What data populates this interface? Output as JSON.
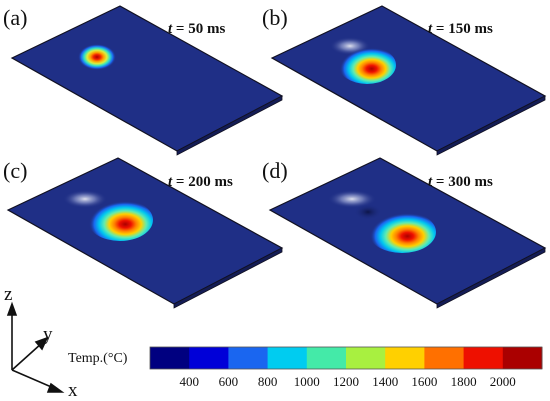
{
  "panels": [
    {
      "label": "(a)",
      "time_var": "t",
      "time_text": " = 50 ms",
      "hot_intensity": 0.55
    },
    {
      "label": "(b)",
      "time_var": "t",
      "time_text": " = 150 ms",
      "hot_intensity": 0.9
    },
    {
      "label": "(c)",
      "time_var": "t",
      "time_text": " = 200 ms",
      "hot_intensity": 0.92
    },
    {
      "label": "(d)",
      "time_var": "t",
      "time_text": " = 300 ms",
      "hot_intensity": 0.95
    }
  ],
  "colorbar": {
    "title": "Temp.(°C)",
    "ticks": [
      "400",
      "600",
      "800",
      "1000",
      "1200",
      "1400",
      "1600",
      "1800",
      "2000"
    ],
    "colors": [
      "#000080",
      "#0000d8",
      "#1a66f0",
      "#00ccf0",
      "#44eaa8",
      "#a8f040",
      "#ffd000",
      "#ff7000",
      "#ee1000",
      "#aa0000"
    ]
  },
  "axes": {
    "z": "z",
    "y": "y",
    "x": "x"
  },
  "colors": {
    "plate_fill": "#1f2f86",
    "plate_edge": "#111122"
  }
}
